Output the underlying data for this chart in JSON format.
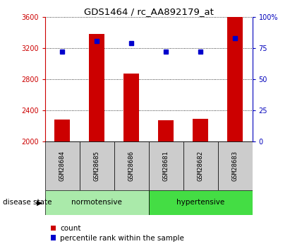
{
  "title": "GDS1464 / rc_AA892179_at",
  "samples": [
    "GSM28684",
    "GSM28685",
    "GSM28686",
    "GSM28681",
    "GSM28682",
    "GSM28683"
  ],
  "counts": [
    2280,
    3380,
    2870,
    2270,
    2290,
    3610
  ],
  "percentiles": [
    72,
    80.5,
    79,
    72,
    72.5,
    83
  ],
  "bar_color": "#CC0000",
  "dot_color": "#0000CC",
  "left_axis_color": "#CC0000",
  "right_axis_color": "#0000BB",
  "ylim_left": [
    2000,
    3600
  ],
  "ylim_right": [
    0,
    100
  ],
  "yticks_left": [
    2000,
    2400,
    2800,
    3200,
    3600
  ],
  "ytick_labels_left": [
    "2000",
    "2400",
    "2800",
    "3200",
    "3600"
  ],
  "yticks_right": [
    0,
    25,
    50,
    75,
    100
  ],
  "ytick_labels_right": [
    "0",
    "25",
    "50",
    "75",
    "100%"
  ],
  "bg_color": "#FFFFFF",
  "grid_color": "#000000",
  "sample_box_color": "#CCCCCC",
  "normo_color": "#AAEAAA",
  "hyper_color": "#44DD44",
  "groups_info": [
    [
      "normotensive",
      0,
      2,
      "#AAEAAA"
    ],
    [
      "hypertensive",
      3,
      5,
      "#44DD44"
    ]
  ]
}
